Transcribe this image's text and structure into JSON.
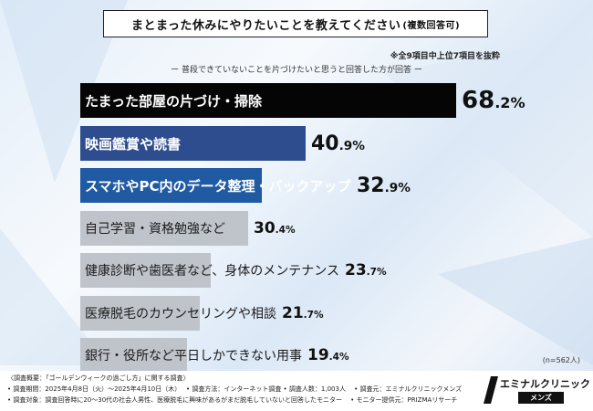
{
  "title": "まとまった休みにやりたいことを教えてください",
  "title_suffix": "(複数回答可)",
  "note": "※全9項目中上位7項目を抜粋",
  "subtitle": "ー 普段できていないことを片づけたいと思うと回答した方が回答 ー",
  "sample_size": "(n=562人)",
  "chart_data": {
    "type": "bar",
    "orientation": "horizontal",
    "unit": "%",
    "categories": [
      "たまった部屋の片づけ・掃除",
      "映画鑑賞や読書",
      "スマホやPC内のデータ整理・バックアップ",
      "自己学習・資格勉強など",
      "健康診断や歯医者など、身体のメンテナンス",
      "医療脱毛のカウンセリングや相談",
      "銀行・役所など平日しかできない用事"
    ],
    "values": [
      68.2,
      40.9,
      32.9,
      30.4,
      23.7,
      21.7,
      19.4
    ],
    "value_int": [
      "68",
      "40",
      "32",
      "30",
      "23",
      "21",
      "19"
    ],
    "value_dec": [
      ".2%",
      ".9%",
      ".9%",
      ".4%",
      ".7%",
      ".7%",
      ".4%"
    ],
    "colors": {
      "bar1": "#050505",
      "bar2": "#2e4d8e",
      "bar3": "#1f5aa3",
      "bar_other": "#bfc4cb"
    }
  },
  "footer": {
    "lines": [
      "〈調査概要：「ゴールデンウィークの過ごし方」に関する調査〉",
      "• 調査期間：2025年4月8日（火）〜2025年4月10日（木）　 • 調査方法：インターネット調査 • 調査人数：1,003人　 • 調査元：エミナルクリニックメンズ",
      "• 調査対象：調査回答時に20〜30代の社会人男性、医療脱毛に興味があるがまだ脱毛していないと回答したモニター　 • モニター提供元：PRIZMAリサーチ"
    ]
  },
  "logo": {
    "name": "エミナルクリニック",
    "sub": "メンズ"
  }
}
